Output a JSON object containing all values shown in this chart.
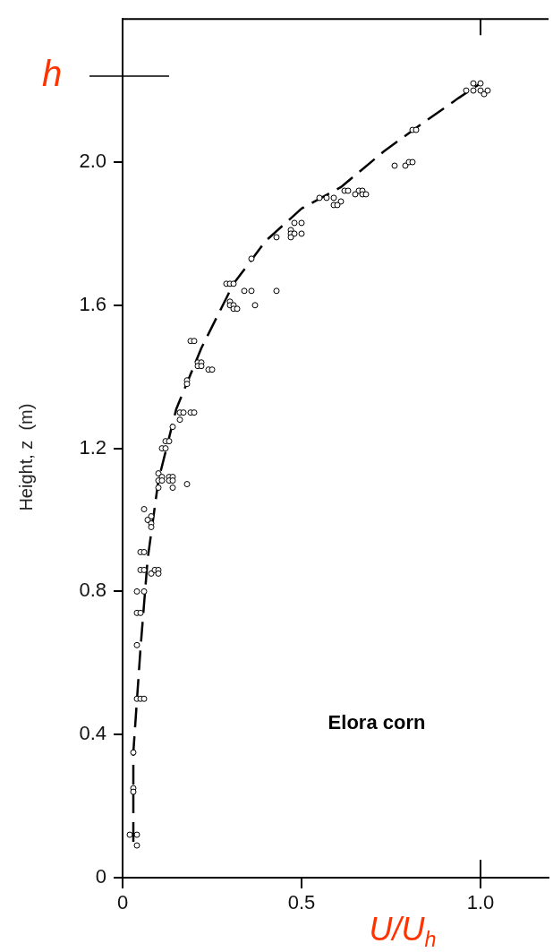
{
  "chart_data": {
    "type": "scatter",
    "xlabel": "U/U$_{h}$",
    "ylabel": "Height, z  (m)",
    "annotations": [
      "Elora corn"
    ],
    "xlim": [
      0,
      1.19
    ],
    "ylim": [
      0,
      2.4
    ],
    "xticks": [
      0,
      0.5,
      {
        "value": 1,
        "label": "1.0"
      }
    ],
    "yticks": [
      0,
      0.4,
      0.8,
      1.2,
      1.6,
      {
        "value": 2,
        "label": "2.0"
      }
    ],
    "grid": false,
    "legend": false,
    "marker": "circle",
    "ref_lines": [
      {
        "axis": "y",
        "value": 2.24,
        "label": "h"
      }
    ],
    "series": [
      {
        "color": "#000000",
        "x": [
          0.98,
          1.0,
          0.96,
          0.98,
          1.0,
          1.01,
          1.02,
          0.81,
          0.82,
          0.76,
          0.79,
          0.8,
          0.81,
          0.62,
          0.63,
          0.66,
          0.67,
          0.65,
          0.67,
          0.68,
          0.55,
          0.57,
          0.59,
          0.61,
          0.59,
          0.6,
          0.48,
          0.5,
          0.47,
          0.47,
          0.48,
          0.5,
          0.47,
          0.43,
          0.36,
          0.43,
          0.29,
          0.3,
          0.31,
          0.34,
          0.36,
          0.37,
          0.3,
          0.3,
          0.31,
          0.31,
          0.32,
          0.19,
          0.2,
          0.21,
          0.22,
          0.21,
          0.22,
          0.24,
          0.25,
          0.18,
          0.18,
          0.16,
          0.17,
          0.19,
          0.2,
          0.16,
          0.14,
          0.12,
          0.13,
          0.11,
          0.12,
          0.1,
          0.11,
          0.1,
          0.11,
          0.13,
          0.14,
          0.13,
          0.14,
          0.1,
          0.14,
          0.18,
          0.06,
          0.08,
          0.07,
          0.08,
          0.08,
          0.05,
          0.06,
          0.05,
          0.06,
          0.08,
          0.09,
          0.1,
          0.1,
          0.04,
          0.06,
          0.04,
          0.05,
          0.04,
          0.04,
          0.05,
          0.06,
          0.03,
          0.03,
          0.03,
          0.02,
          0.04,
          0.04
        ],
        "values": [
          2.22,
          2.22,
          2.2,
          2.2,
          2.2,
          2.19,
          2.2,
          2.09,
          2.09,
          1.99,
          1.99,
          2.0,
          2.0,
          1.92,
          1.92,
          1.92,
          1.92,
          1.91,
          1.91,
          1.91,
          1.9,
          1.9,
          1.9,
          1.89,
          1.88,
          1.88,
          1.83,
          1.83,
          1.81,
          1.8,
          1.8,
          1.8,
          1.79,
          1.79,
          1.73,
          1.64,
          1.66,
          1.66,
          1.66,
          1.64,
          1.64,
          1.6,
          1.61,
          1.6,
          1.6,
          1.59,
          1.59,
          1.5,
          1.5,
          1.44,
          1.44,
          1.43,
          1.43,
          1.42,
          1.42,
          1.39,
          1.38,
          1.3,
          1.3,
          1.3,
          1.3,
          1.28,
          1.26,
          1.22,
          1.22,
          1.2,
          1.2,
          1.13,
          1.12,
          1.11,
          1.11,
          1.12,
          1.12,
          1.11,
          1.11,
          1.09,
          1.09,
          1.1,
          1.03,
          1.01,
          1.0,
          0.99,
          0.98,
          0.91,
          0.91,
          0.86,
          0.86,
          0.85,
          0.86,
          0.86,
          0.85,
          0.8,
          0.8,
          0.74,
          0.74,
          0.65,
          0.5,
          0.5,
          0.5,
          0.35,
          0.25,
          0.24,
          0.12,
          0.12,
          0.09
        ]
      },
      {
        "type": "line",
        "color": "#000000",
        "line_style": "dashed",
        "marker": "none",
        "x": [
          0.03,
          0.03,
          0.05,
          0.07,
          0.1,
          0.15,
          0.22,
          0.31,
          0.4,
          0.5,
          0.61,
          0.73,
          0.84,
          0.94,
          1.0
        ],
        "values": [
          0.1,
          0.35,
          0.64,
          0.89,
          1.11,
          1.31,
          1.48,
          1.66,
          1.78,
          1.87,
          1.93,
          2.03,
          2.11,
          2.18,
          2.22
        ]
      }
    ]
  }
}
